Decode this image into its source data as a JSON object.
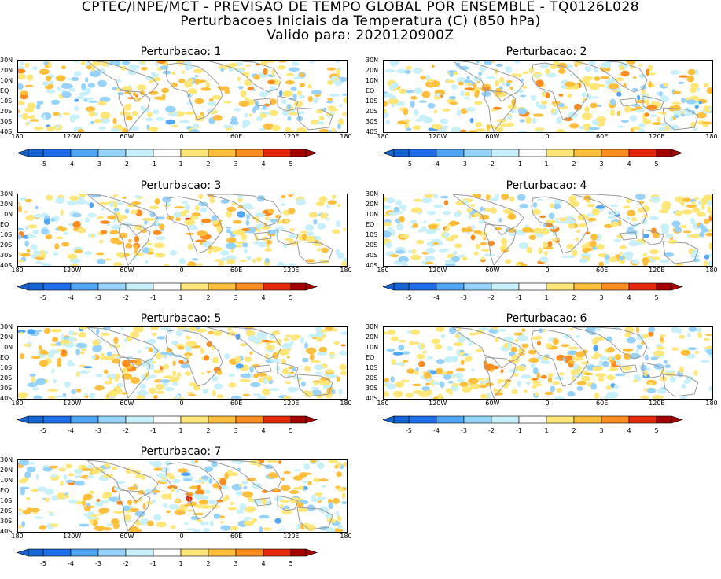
{
  "header": {
    "line1": "CPTEC/INPE/MCT - PREVISAO DE TEMPO GLOBAL POR ENSEMBLE - TQ0126L028",
    "line2": "Perturbacoes Iniciais da Temperatura (C) (850 hPa)",
    "line3": "Valido para: 2020120900Z"
  },
  "lat_labels": [
    "30N",
    "20N",
    "10N",
    "EQ",
    "10S",
    "20S",
    "30S",
    "40S"
  ],
  "lon_labels": [
    "180",
    "120W",
    "60W",
    "0",
    "60E",
    "120E",
    "180"
  ],
  "colorbar": {
    "labels": [
      "-5",
      "-4",
      "-3",
      "-2",
      "-1",
      "1",
      "2",
      "3",
      "4",
      "5"
    ],
    "colors": [
      "#1464d2",
      "#1e6eeb",
      "#50a5f5",
      "#96d2fa",
      "#c8f0fa",
      "#ffffff",
      "#ffe678",
      "#ffbe3c",
      "#ff8c1e",
      "#e6280a",
      "#a50000"
    ]
  },
  "panels": [
    {
      "title": "Perturbacao: 1"
    },
    {
      "title": "Perturbacao: 2"
    },
    {
      "title": "Perturbacao: 3"
    },
    {
      "title": "Perturbacao: 4"
    },
    {
      "title": "Perturbacao: 5"
    },
    {
      "title": "Perturbacao: 6"
    },
    {
      "title": "Perturbacao: 7"
    }
  ]
}
